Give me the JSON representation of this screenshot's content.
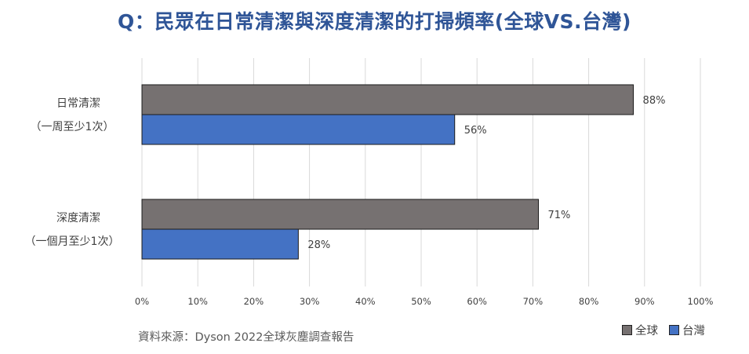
{
  "chart_data": {
    "type": "bar",
    "orientation": "horizontal",
    "title": "Q：民眾在日常清潔與深度清潔的打掃頻率(全球VS.台灣)",
    "categories": [
      [
        "日常清潔",
        "（一周至少1次）"
      ],
      [
        "深度清潔",
        "（一個月至少1次）"
      ]
    ],
    "series": [
      {
        "name": "全球",
        "values": [
          88,
          71
        ],
        "color": "#767171"
      },
      {
        "name": "台灣",
        "values": [
          56,
          28
        ],
        "color": "#4472c4"
      }
    ],
    "xlim": [
      0,
      100
    ],
    "x_ticks": [
      "0%",
      "10%",
      "20%",
      "30%",
      "40%",
      "50%",
      "60%",
      "70%",
      "80%",
      "90%",
      "100%"
    ],
    "value_suffix": "%",
    "grid": true,
    "legend_position": "bottom-right"
  },
  "source": "資料來源：Dyson 2022全球灰塵調查報告"
}
